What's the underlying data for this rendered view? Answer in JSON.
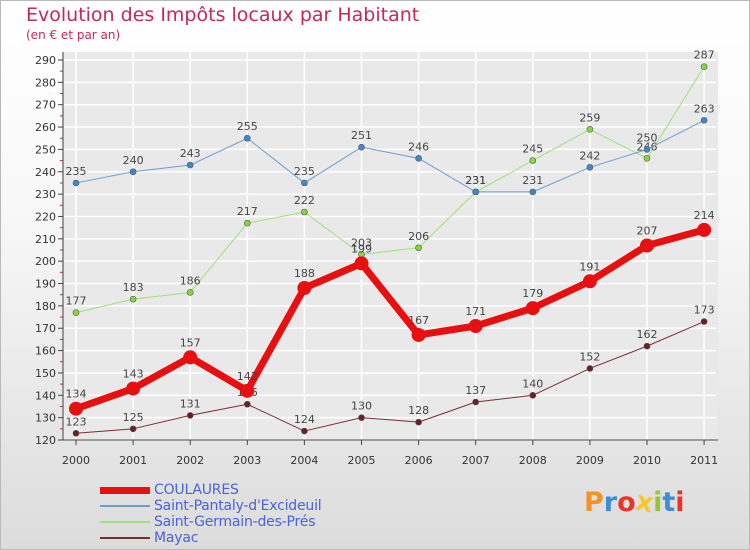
{
  "title": "Evolution des Impôts locaux par Habitant",
  "subtitle": "(en € et par an)",
  "brand": {
    "text": "Proxiti",
    "colors": [
      "#f39324",
      "#3d8ed6",
      "#e8352a",
      "#f7c82a",
      "#9cc23b",
      "#3d8ed6",
      "#e8352a"
    ]
  },
  "colors": {
    "title": "#c3285c",
    "legend_text": "#4a63d8",
    "axis": "#444444",
    "grid": "#ffffff"
  },
  "chart_data": {
    "type": "line",
    "title": "Evolution des Impôts locaux par Habitant",
    "subtitle": "(en € et par an)",
    "xlabel": "",
    "ylabel": "",
    "ylim": [
      120,
      290
    ],
    "y_ticks": [
      120,
      130,
      140,
      150,
      160,
      170,
      180,
      190,
      200,
      210,
      220,
      230,
      240,
      250,
      260,
      270,
      280,
      290
    ],
    "x": [
      "2000",
      "2001",
      "2002",
      "2003",
      "2004",
      "2005",
      "2006",
      "2007",
      "2008",
      "2009",
      "2010",
      "2011"
    ],
    "grid": true,
    "legend_position": "bottom-left",
    "series": [
      {
        "name": "Mayac",
        "color": "#7b2e30",
        "marker_fill": "#6a1f22",
        "line_width": 1,
        "marker_r": 3,
        "values": [
          123,
          125,
          131,
          136,
          124,
          130,
          128,
          137,
          140,
          152,
          162,
          173
        ]
      },
      {
        "name": "Saint-Germain-des-Prés",
        "color": "#9be37a",
        "marker_fill": "#84d83a",
        "line_width": 1,
        "marker_r": 3,
        "values": [
          177,
          183,
          186,
          217,
          222,
          203,
          206,
          231,
          245,
          259,
          246,
          287
        ]
      },
      {
        "name": "Saint-Pantaly-d'Excideuil",
        "color": "#6a9fd3",
        "marker_fill": "#3f88c9",
        "line_width": 1,
        "marker_r": 3,
        "values": [
          235,
          240,
          243,
          255,
          235,
          251,
          246,
          231,
          231,
          242,
          250,
          263
        ]
      },
      {
        "name": "COULAURES",
        "color": "#e70f0f",
        "marker_fill": "#e70f0f",
        "line_width": 7,
        "marker_r": 7,
        "values": [
          134,
          143,
          157,
          142,
          188,
          199,
          167,
          171,
          179,
          191,
          207,
          214
        ]
      }
    ],
    "legend_order": [
      "COULAURES",
      "Saint-Pantaly-d'Excideuil",
      "Saint-Germain-des-Prés",
      "Mayac"
    ]
  }
}
